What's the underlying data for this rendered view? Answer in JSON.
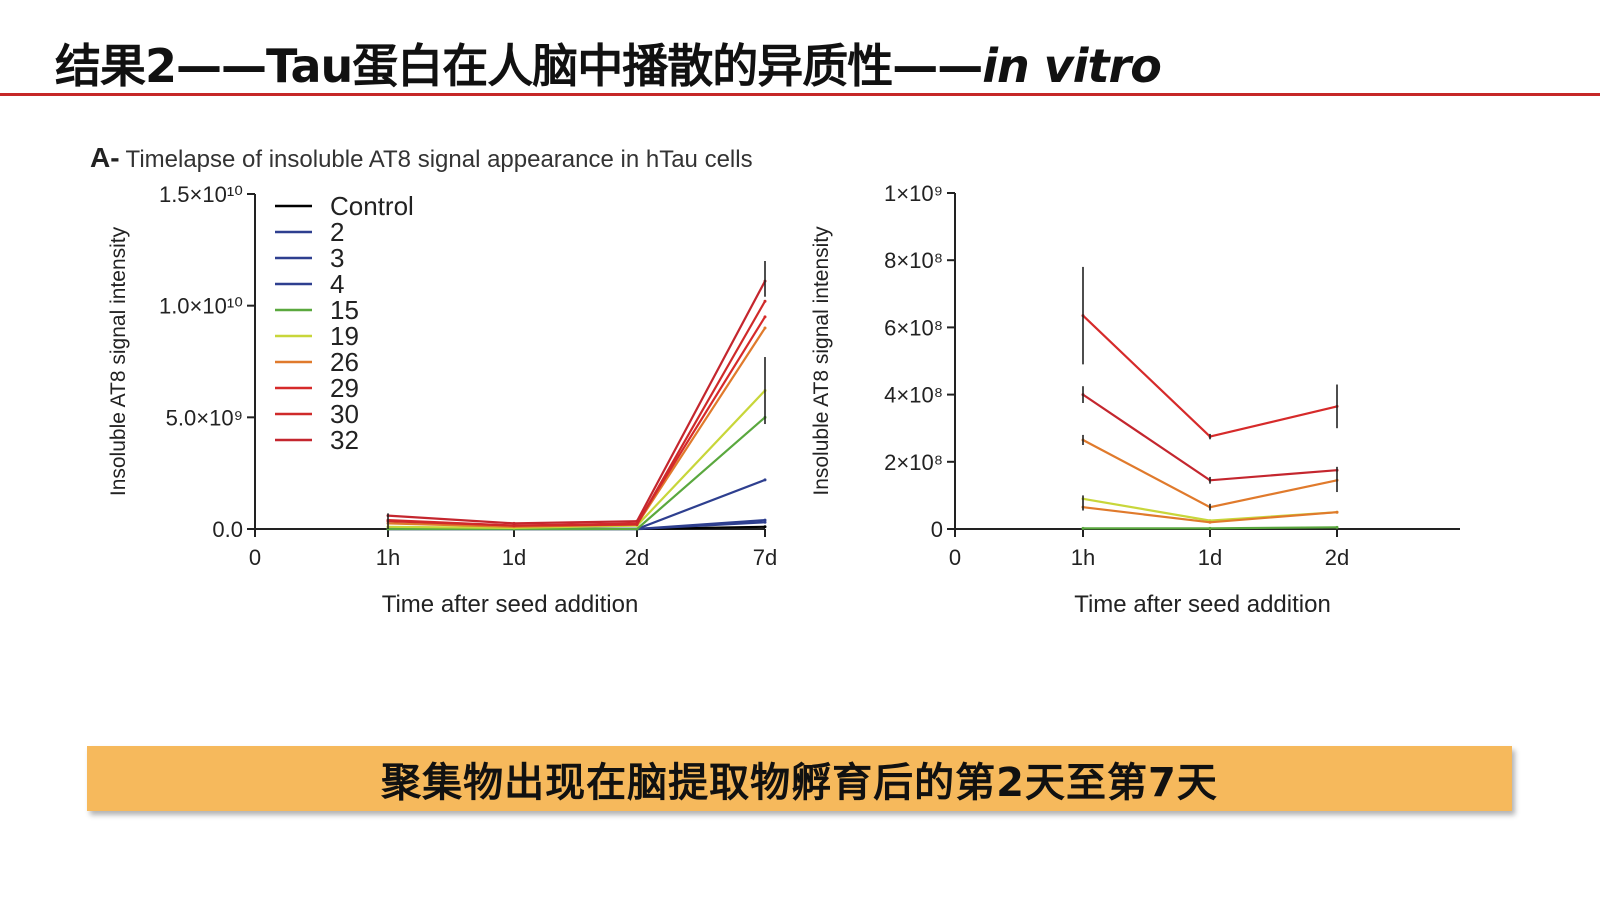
{
  "slide": {
    "title_main": "结果2——Tau蛋白在人脑中播散的异质性——",
    "title_italic": "in vitro",
    "panel_label": "A-",
    "panel_title": "Timelapse of insoluble AT8 signal appearance in hTau cells",
    "banner": "聚集物出现在脑提取物孵育后的第2天至第7天",
    "accent_color": "#c62828",
    "banner_color": "#f6b95c"
  },
  "chart_data": [
    {
      "type": "line",
      "title": "",
      "xlabel": "Time after seed addition",
      "ylabel": "Insoluble AT8 signal intensity",
      "x": [
        "1h",
        "1d",
        "2d",
        "7d"
      ],
      "x_ticks": [
        "0",
        "1h",
        "1d",
        "2d",
        "7d"
      ],
      "y_ticks": [
        "0.0",
        "5.0×10⁹",
        "1.0×10¹⁰",
        "1.5×10¹⁰"
      ],
      "ylim": [
        0,
        15000000000
      ],
      "legend_position": "top-left",
      "series": [
        {
          "name": "Control",
          "color": "#000000",
          "values": [
            0,
            0,
            0,
            100000000
          ]
        },
        {
          "name": "2",
          "color": "#2e3f8f",
          "values": [
            0,
            0,
            0,
            2200000000
          ]
        },
        {
          "name": "3",
          "color": "#2e3f8f",
          "values": [
            0,
            0,
            0,
            400000000
          ]
        },
        {
          "name": "4",
          "color": "#2e3f8f",
          "values": [
            0,
            0,
            0,
            300000000
          ]
        },
        {
          "name": "15",
          "color": "#5aa83e",
          "values": [
            0,
            0,
            0,
            5000000000
          ]
        },
        {
          "name": "19",
          "color": "#c8d63a",
          "values": [
            100000000,
            50000000,
            150000000,
            6200000000
          ]
        },
        {
          "name": "26",
          "color": "#e07a2c",
          "values": [
            250000000,
            100000000,
            200000000,
            9000000000
          ]
        },
        {
          "name": "29",
          "color": "#d62a2a",
          "values": [
            400000000,
            150000000,
            250000000,
            9500000000
          ]
        },
        {
          "name": "30",
          "color": "#cf2a2a",
          "values": [
            350000000,
            150000000,
            200000000,
            10200000000
          ]
        },
        {
          "name": "32",
          "color": "#c4262e",
          "values": [
            600000000,
            250000000,
            350000000,
            11100000000
          ]
        }
      ]
    },
    {
      "type": "line",
      "title": "",
      "xlabel": "Time after seed addition",
      "ylabel": "Insoluble AT8 signal intensity",
      "x": [
        "1h",
        "1d",
        "2d"
      ],
      "x_ticks": [
        "0",
        "1h",
        "1d",
        "2d"
      ],
      "y_ticks": [
        "0",
        "2×10⁸",
        "4×10⁸",
        "6×10⁸",
        "8×10⁸",
        "1×10⁹"
      ],
      "ylim": [
        0,
        1000000000
      ],
      "series": [
        {
          "color": "#5aa83e",
          "values": [
            2000000,
            2000000,
            5000000
          ]
        },
        {
          "color": "#c8d63a",
          "values": [
            90000000,
            25000000,
            50000000
          ]
        },
        {
          "color": "#e07a2c",
          "values": [
            65000000,
            20000000,
            50000000
          ]
        },
        {
          "color": "#e07a2c",
          "values": [
            265000000,
            65000000,
            145000000
          ]
        },
        {
          "color": "#c4262e",
          "values": [
            400000000,
            145000000,
            175000000
          ]
        },
        {
          "color": "#d62a2a",
          "values": [
            635000000,
            275000000,
            365000000
          ]
        }
      ]
    }
  ]
}
